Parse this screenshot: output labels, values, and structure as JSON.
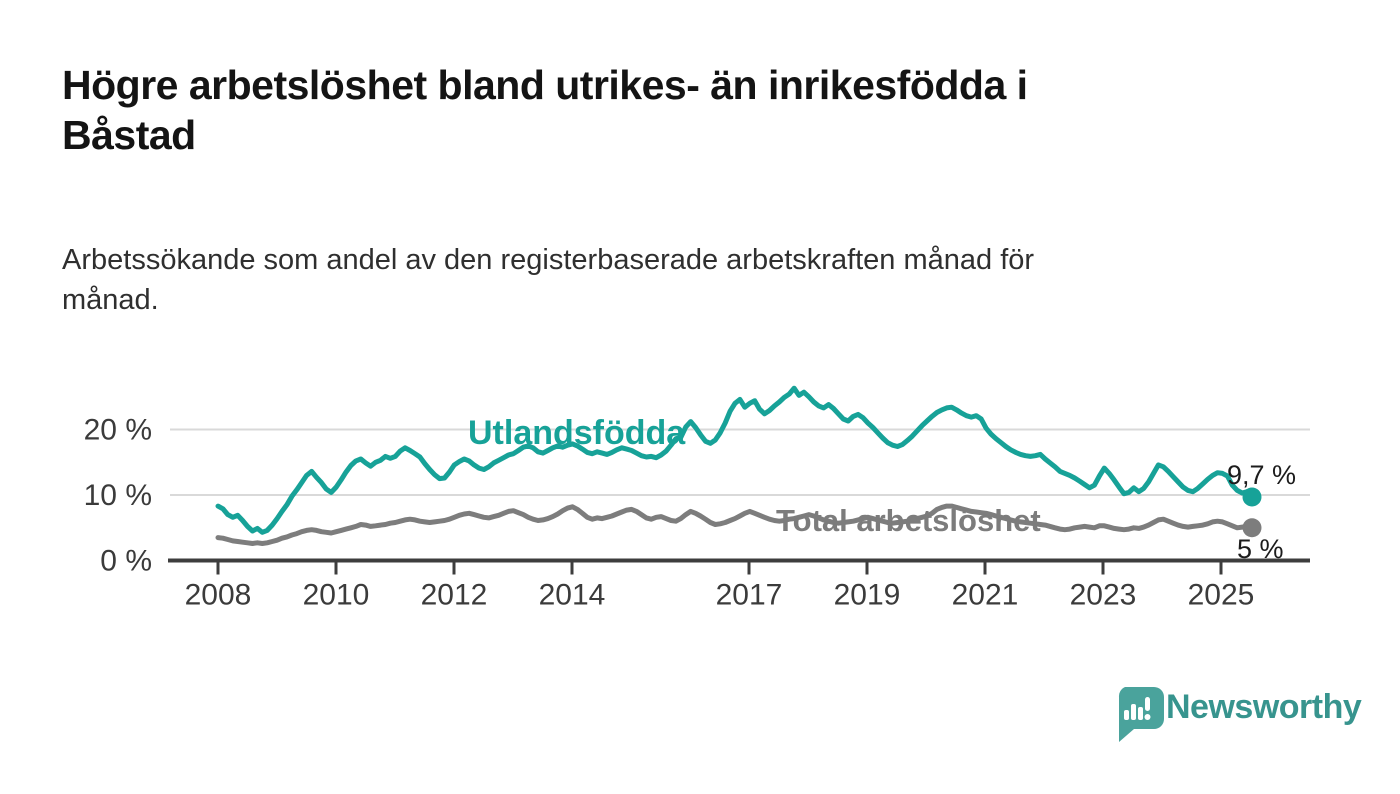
{
  "header": {
    "title_lines": [
      "Högre arbetslöshet bland utrikes- än inrikesfödda i",
      "Båstad"
    ],
    "subtitle_lines": [
      "Arbetssökande som andel av den registerbaserade arbetskraften månad för",
      "månad."
    ]
  },
  "chart_data": {
    "type": "line",
    "title": "Högre arbetslöshet bland utrikes- än inrikesfödda i Båstad",
    "subtitle": "Arbetssökande som andel av den registerbaserade arbetskraften månad för månad.",
    "frequency": "monthly",
    "x_start": "2008-01",
    "x_end": "2025-07",
    "x_tick_labels": [
      "2008",
      "2010",
      "2012",
      "2014",
      "2017",
      "2019",
      "2021",
      "2023",
      "2025"
    ],
    "y_tick_labels": [
      "0 %",
      "10 %",
      "20 %"
    ],
    "y_tick_values": [
      0,
      10,
      20
    ],
    "ylim": [
      0,
      27
    ],
    "grid": "horizontal",
    "axis_color": "#3d3d3d",
    "grid_color": "#d9d9d9",
    "series": [
      {
        "name": "Utlandsfödda",
        "color": "#17a298",
        "end_label": "9,7 %",
        "end_value": 9.7,
        "values": [
          8.3,
          7.9,
          7.0,
          6.6,
          6.9,
          6.1,
          5.2,
          4.5,
          4.9,
          4.3,
          4.6,
          5.4,
          6.4,
          7.5,
          8.5,
          9.8,
          10.8,
          11.9,
          13.0,
          13.6,
          12.7,
          11.9,
          10.9,
          10.4,
          11.2,
          12.3,
          13.5,
          14.5,
          15.2,
          15.5,
          14.9,
          14.4,
          15.0,
          15.3,
          15.9,
          15.6,
          15.9,
          16.7,
          17.2,
          16.8,
          16.3,
          15.8,
          14.8,
          13.9,
          13.1,
          12.5,
          12.6,
          13.5,
          14.6,
          15.1,
          15.5,
          15.2,
          14.6,
          14.1,
          13.9,
          14.3,
          14.9,
          15.3,
          15.7,
          16.1,
          16.3,
          16.8,
          17.3,
          17.5,
          17.2,
          16.6,
          16.4,
          16.8,
          17.2,
          17.5,
          17.3,
          17.6,
          17.8,
          17.5,
          17.0,
          16.5,
          16.3,
          16.6,
          16.4,
          16.2,
          16.5,
          16.9,
          17.2,
          17.0,
          16.8,
          16.4,
          16.0,
          15.8,
          15.9,
          15.7,
          16.1,
          16.7,
          17.6,
          18.6,
          18.8,
          20.4,
          21.2,
          20.3,
          19.2,
          18.2,
          17.9,
          18.4,
          19.5,
          21.0,
          22.8,
          24.0,
          24.6,
          23.4,
          24.0,
          24.4,
          23.1,
          22.4,
          22.9,
          23.6,
          24.2,
          24.9,
          25.4,
          26.3,
          25.2,
          25.7,
          25.0,
          24.2,
          23.6,
          23.3,
          23.8,
          23.2,
          22.4,
          21.6,
          21.3,
          22.0,
          22.3,
          21.8,
          21.0,
          20.3,
          19.5,
          18.7,
          18.0,
          17.6,
          17.4,
          17.7,
          18.3,
          19.0,
          19.8,
          20.6,
          21.3,
          22.0,
          22.6,
          23.0,
          23.3,
          23.4,
          23.0,
          22.5,
          22.1,
          21.9,
          22.1,
          21.6,
          20.2,
          19.3,
          18.6,
          18.0,
          17.4,
          16.9,
          16.5,
          16.2,
          16.0,
          15.9,
          16.0,
          16.2,
          15.5,
          14.9,
          14.3,
          13.6,
          13.3,
          13.0,
          12.6,
          12.1,
          11.6,
          11.1,
          11.5,
          12.9,
          14.1,
          13.3,
          12.3,
          11.2,
          10.2,
          10.4,
          11.1,
          10.5,
          11.0,
          12.0,
          13.3,
          14.6,
          14.3,
          13.6,
          12.8,
          12.0,
          11.2,
          10.7,
          10.5,
          11.0,
          11.7,
          12.4,
          13.0,
          13.4,
          13.3,
          12.9,
          11.5,
          10.7,
          10.3,
          10.5,
          9.7
        ]
      },
      {
        "name": "Total arbetslöshet",
        "color": "#7d7d7d",
        "end_label": "5 %",
        "end_value": 5.0,
        "values": [
          3.5,
          3.4,
          3.2,
          3.0,
          2.9,
          2.8,
          2.7,
          2.6,
          2.7,
          2.6,
          2.7,
          2.9,
          3.1,
          3.4,
          3.6,
          3.9,
          4.1,
          4.4,
          4.6,
          4.7,
          4.6,
          4.4,
          4.3,
          4.2,
          4.4,
          4.6,
          4.8,
          5.0,
          5.2,
          5.5,
          5.4,
          5.2,
          5.3,
          5.4,
          5.5,
          5.7,
          5.8,
          6.0,
          6.2,
          6.3,
          6.2,
          6.0,
          5.9,
          5.8,
          5.9,
          6.0,
          6.1,
          6.3,
          6.6,
          6.9,
          7.1,
          7.2,
          7.0,
          6.8,
          6.6,
          6.5,
          6.7,
          6.9,
          7.2,
          7.5,
          7.6,
          7.3,
          7.0,
          6.6,
          6.3,
          6.1,
          6.2,
          6.4,
          6.7,
          7.1,
          7.6,
          8.0,
          8.2,
          7.8,
          7.2,
          6.6,
          6.3,
          6.5,
          6.4,
          6.6,
          6.8,
          7.1,
          7.4,
          7.7,
          7.8,
          7.5,
          7.0,
          6.5,
          6.3,
          6.6,
          6.7,
          6.4,
          6.1,
          6.0,
          6.4,
          7.0,
          7.5,
          7.2,
          6.8,
          6.3,
          5.8,
          5.5,
          5.6,
          5.8,
          6.1,
          6.4,
          6.8,
          7.2,
          7.5,
          7.2,
          6.9,
          6.6,
          6.3,
          6.1,
          6.0,
          6.1,
          6.3,
          6.4,
          6.6,
          6.8,
          7.0,
          6.8,
          6.5,
          6.2,
          6.0,
          5.8,
          5.7,
          5.8,
          5.9,
          6.0,
          6.2,
          6.4,
          6.6,
          6.4,
          6.2,
          6.0,
          5.8,
          5.7,
          5.8,
          5.9,
          6.0,
          6.2,
          6.4,
          6.6,
          6.8,
          7.2,
          7.8,
          8.1,
          8.3,
          8.3,
          8.1,
          7.9,
          7.7,
          7.5,
          7.4,
          7.3,
          7.2,
          7.0,
          6.8,
          6.6,
          6.4,
          6.2,
          6.0,
          5.9,
          5.8,
          5.7,
          5.6,
          5.5,
          5.4,
          5.2,
          5.0,
          4.8,
          4.7,
          4.8,
          5.0,
          5.1,
          5.2,
          5.1,
          5.0,
          5.3,
          5.3,
          5.1,
          4.9,
          4.8,
          4.7,
          4.8,
          5.0,
          4.9,
          5.1,
          5.4,
          5.8,
          6.2,
          6.3,
          6.0,
          5.7,
          5.4,
          5.2,
          5.1,
          5.2,
          5.3,
          5.4,
          5.6,
          5.9,
          6.0,
          5.9,
          5.6,
          5.3,
          5.0,
          5.1,
          5.2,
          5.0
        ]
      }
    ]
  },
  "footer": {
    "brand": "Newsworthy",
    "logo_color": "#4aa39c",
    "wordmark_color": "#37948e"
  }
}
